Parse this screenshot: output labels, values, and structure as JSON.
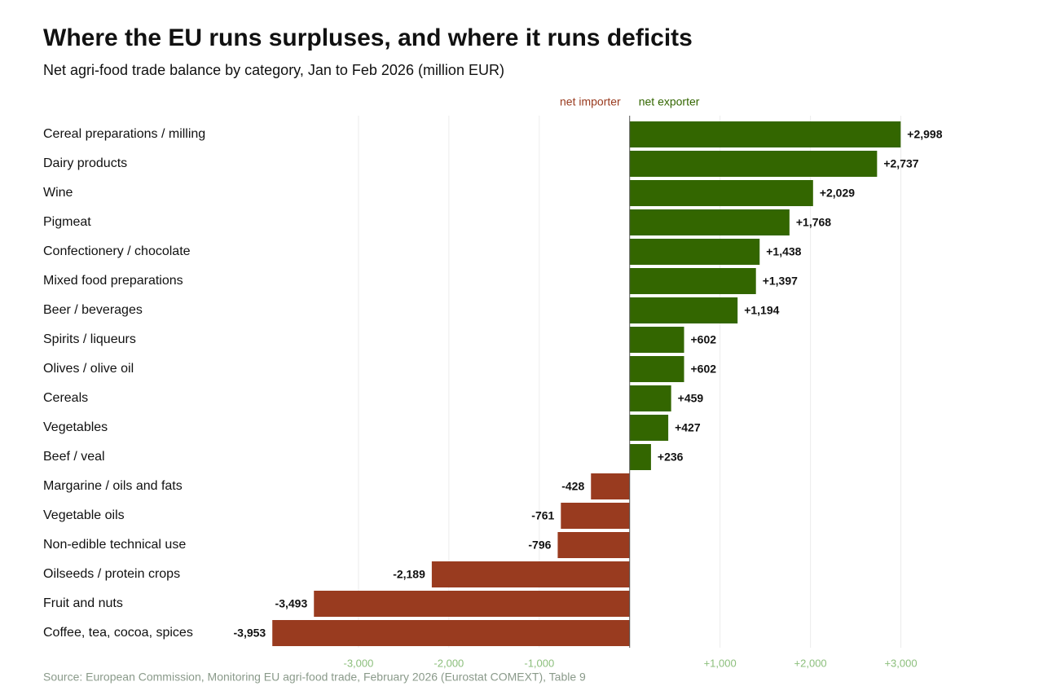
{
  "chart_data": {
    "type": "bar",
    "orientation": "horizontal",
    "title": "Where the EU runs surpluses, and where it runs deficits",
    "subtitle": "Net agri-food trade balance by category, Jan to Feb 2026 (million EUR)",
    "source": "Source: European Commission, Monitoring EU agri-food trade, February 2026 (Eurostat COMEXT), Table 9",
    "annotations": [
      "net importer",
      "net exporter"
    ],
    "categories": [
      "Cereal preparations / milling",
      "Dairy products",
      "Wine",
      "Pigmeat",
      "Confectionery / chocolate",
      "Mixed food preparations",
      "Beer / beverages",
      "Spirits / liqueurs",
      "Olives / olive oil",
      "Cereals",
      "Vegetables",
      "Beef / veal",
      "Margarine / oils and fats",
      "Vegetable oils",
      "Non-edible technical use",
      "Oilseeds / protein crops",
      "Fruit and nuts",
      "Coffee, tea, cocoa, spices"
    ],
    "values": [
      2998,
      2737,
      2029,
      1768,
      1438,
      1397,
      1194,
      602,
      602,
      459,
      427,
      236,
      -428,
      -761,
      -796,
      -2189,
      -3493,
      -3953
    ],
    "value_labels": [
      "+2,998",
      "+2,737",
      "+2,029",
      "+1,768",
      "+1,438",
      "+1,397",
      "+1,194",
      "+602",
      "+602",
      "+459",
      "+427",
      "+236",
      "-428",
      "-761",
      "-796",
      "-2,189",
      "-3,493",
      "-3,953"
    ],
    "positive_color": "#336600",
    "negative_color": "#993b1f",
    "xlim": [
      -4000,
      3500
    ],
    "xticks": [
      {
        "value": -3000,
        "label": "-3,000"
      },
      {
        "value": -2000,
        "label": "-2,000"
      },
      {
        "value": -1000,
        "label": "-1,000"
      },
      {
        "value": 1000,
        "label": "+1,000"
      },
      {
        "value": 2000,
        "label": "+2,000"
      },
      {
        "value": 3000,
        "label": "+3,000"
      }
    ],
    "grid": true
  }
}
